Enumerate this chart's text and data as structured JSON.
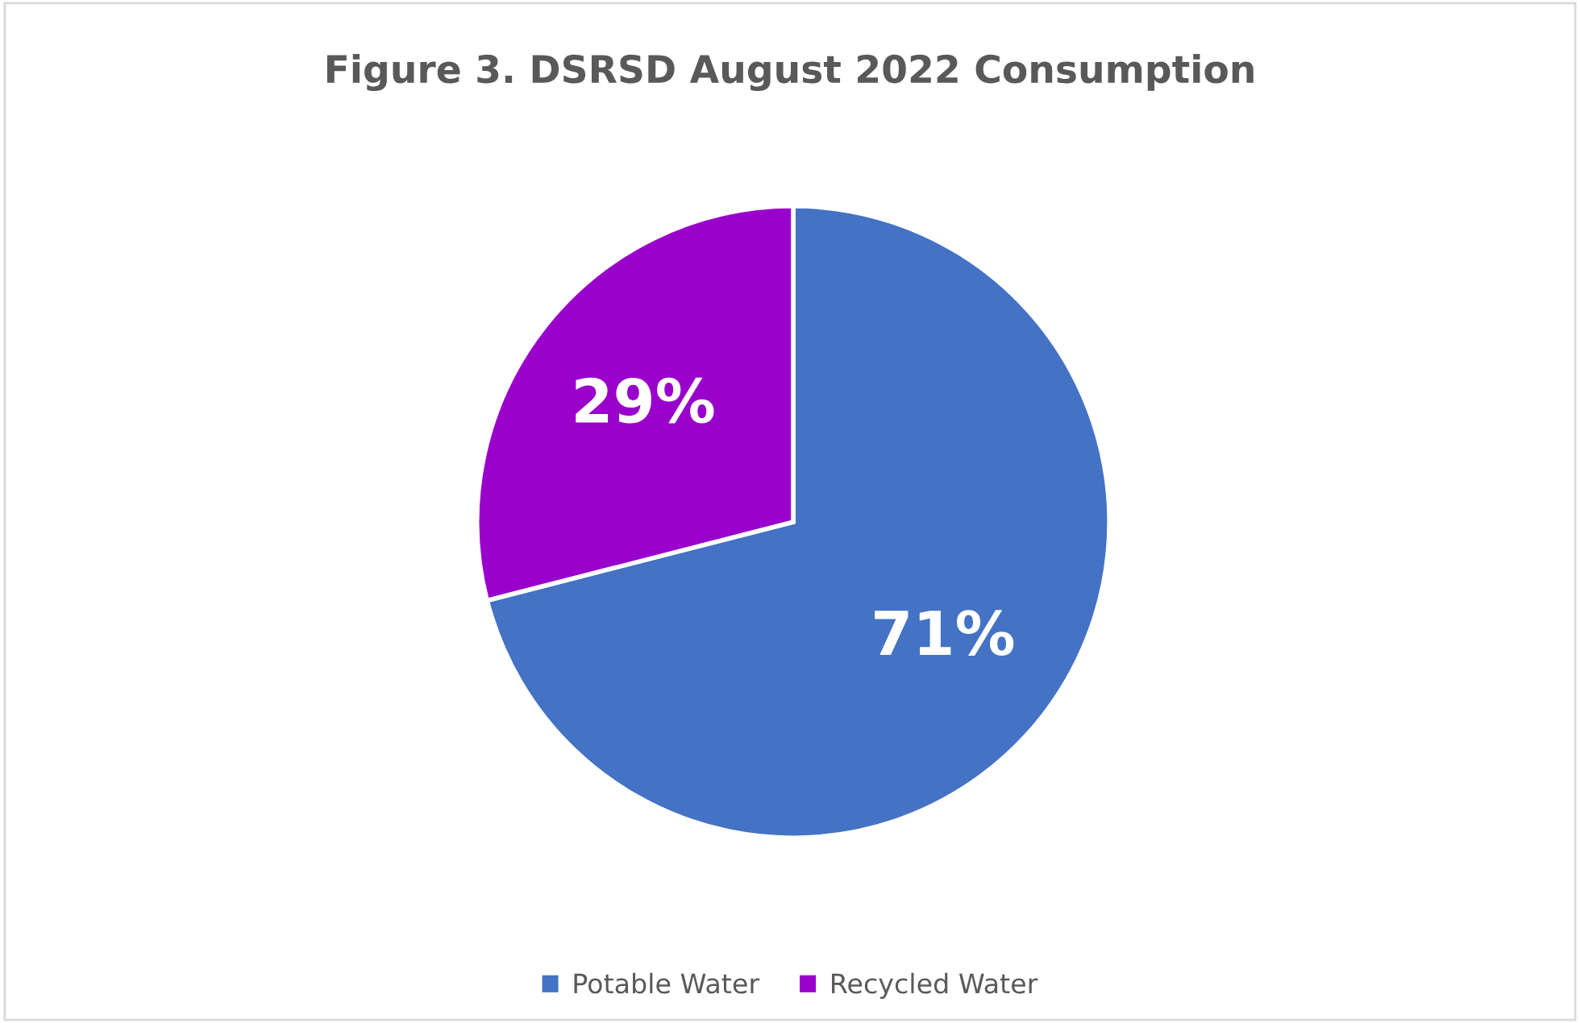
{
  "chart_data": {
    "type": "pie",
    "title": "Figure 3. DSRSD August 2022 Consumption",
    "categories": [
      "Potable Water",
      "Recycled Water"
    ],
    "values": [
      71,
      29
    ],
    "colors": [
      "#4472c4",
      "#9900cc"
    ],
    "value_labels": [
      "71%",
      "29%"
    ],
    "legend": "bottom"
  }
}
